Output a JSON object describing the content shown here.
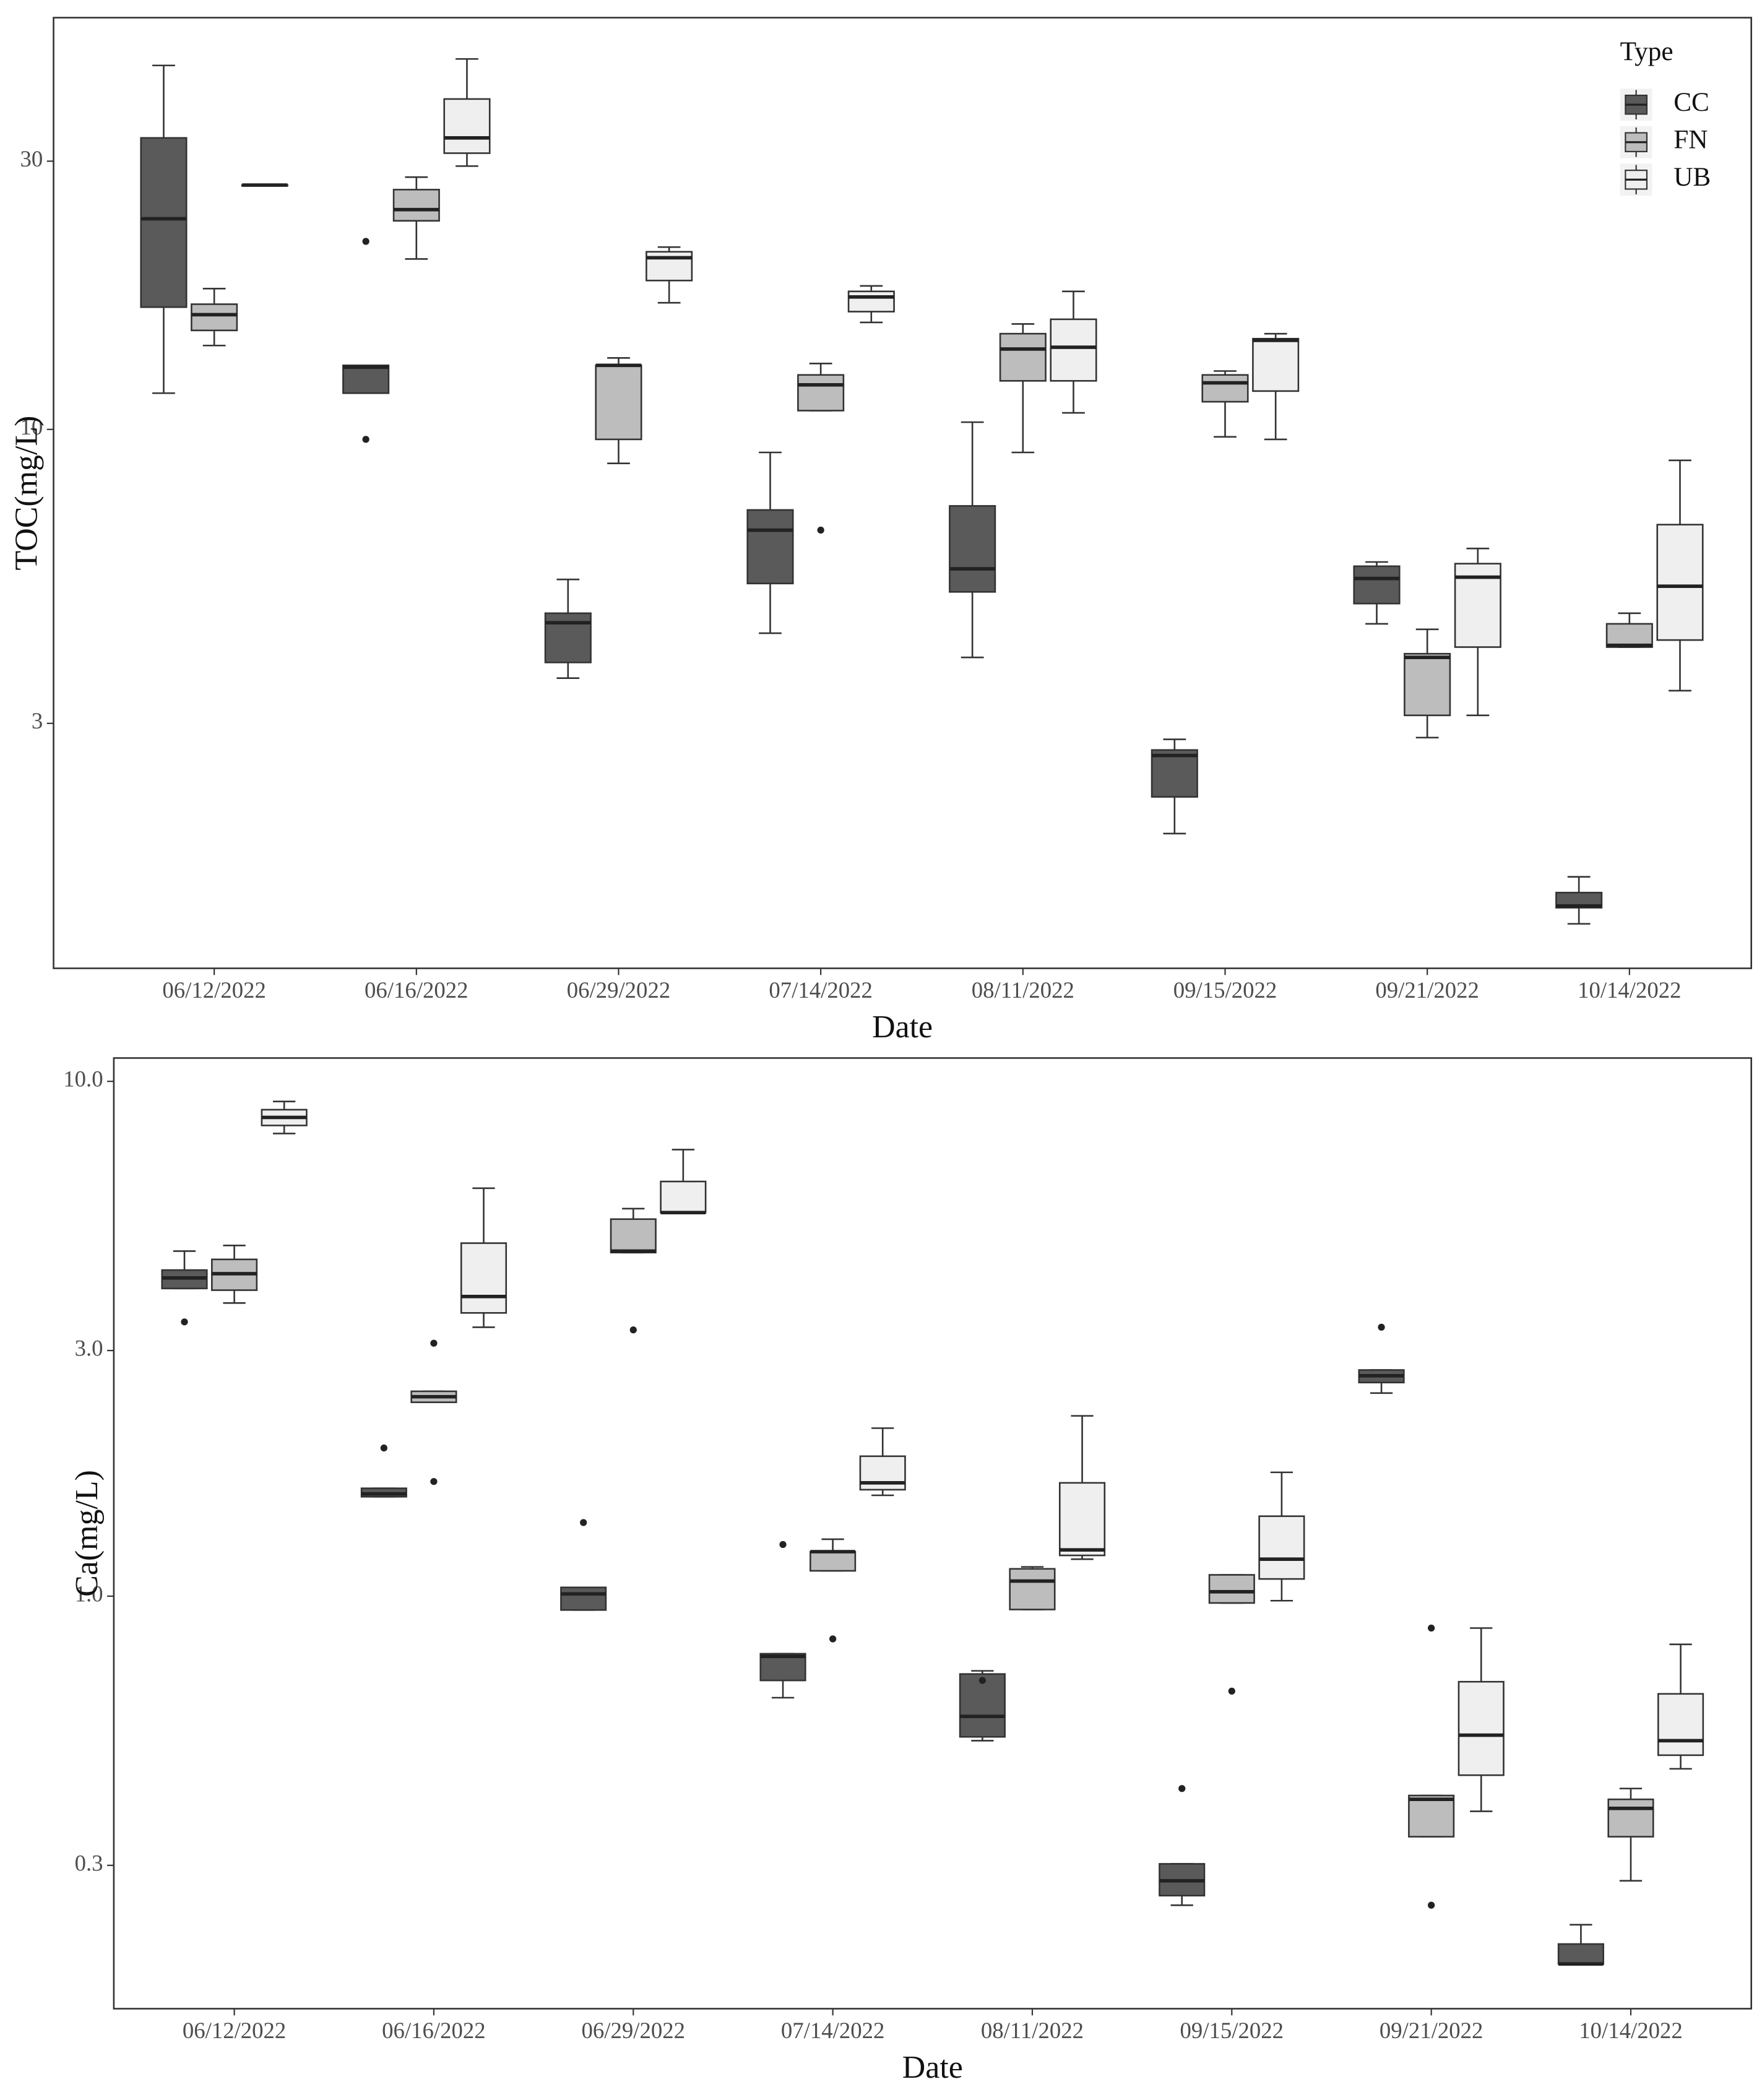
{
  "chart_data": [
    {
      "type": "box",
      "x_label": "Date",
      "y_label": "TOC(mg/L)",
      "log_scale": true,
      "grid": false,
      "legend_title": "Type",
      "legend_position": "top-right",
      "ylim": [
        1.1,
        54
      ],
      "yticks": [
        3,
        10,
        30
      ],
      "categories": [
        "06/12/2022",
        "06/16/2022",
        "06/29/2022",
        "07/14/2022",
        "08/11/2022",
        "09/15/2022",
        "09/21/2022",
        "10/14/2022"
      ],
      "series": [
        {
          "name": "CC",
          "color": "#5a5a5a",
          "values": [
            {
              "min": 11.6,
              "q1": 16.5,
              "median": 23.7,
              "q3": 33,
              "max": 44.4
            },
            {
              "min": 11.6,
              "q1": 11.6,
              "median": 12.9,
              "q3": 13.0,
              "max": 13.0,
              "outliers": [
                21.6,
                9.6
              ]
            },
            {
              "min": 3.61,
              "q1": 3.85,
              "median": 4.53,
              "q3": 4.71,
              "max": 5.41
            },
            {
              "min": 4.34,
              "q1": 5.32,
              "median": 6.62,
              "q3": 7.19,
              "max": 9.1
            },
            {
              "min": 3.93,
              "q1": 5.14,
              "median": 5.65,
              "q3": 7.31,
              "max": 10.3
            },
            {
              "min": 1.91,
              "q1": 2.22,
              "median": 2.63,
              "q3": 2.69,
              "max": 2.81
            },
            {
              "min": 4.51,
              "q1": 4.9,
              "median": 5.43,
              "q3": 5.71,
              "max": 5.81
            },
            {
              "min": 1.32,
              "q1": 1.41,
              "median": 1.42,
              "q3": 1.5,
              "max": 1.6
            }
          ]
        },
        {
          "name": "FN",
          "color": "#bdbdbd",
          "values": [
            {
              "min": 14.1,
              "q1": 15.0,
              "median": 16.0,
              "q3": 16.7,
              "max": 17.8
            },
            {
              "min": 20.1,
              "q1": 23.5,
              "median": 24.6,
              "q3": 26.7,
              "max": 28.1
            },
            {
              "min": 8.7,
              "q1": 9.6,
              "median": 13.0,
              "q3": 13.0,
              "max": 13.4
            },
            {
              "min": 10.8,
              "q1": 10.8,
              "median": 12.0,
              "q3": 12.5,
              "max": 13.1,
              "outliers": [
                6.62
              ]
            },
            {
              "min": 9.1,
              "q1": 12.2,
              "median": 13.9,
              "q3": 14.8,
              "max": 15.4
            },
            {
              "min": 9.7,
              "q1": 11.2,
              "median": 12.1,
              "q3": 12.5,
              "max": 12.7
            },
            {
              "min": 2.83,
              "q1": 3.1,
              "median": 3.93,
              "q3": 3.99,
              "max": 4.41
            },
            {
              "min": 4.1,
              "q1": 4.1,
              "median": 4.13,
              "q3": 4.51,
              "max": 4.71
            }
          ]
        },
        {
          "name": "UB",
          "color": "#efefef",
          "values": [
            {
              "min": 27.2,
              "q1": 27.2,
              "median": 27.2,
              "q3": 27.2,
              "max": 27.2
            },
            {
              "min": 29.4,
              "q1": 31.0,
              "median": 33.0,
              "q3": 38.7,
              "max": 45.6
            },
            {
              "min": 16.8,
              "q1": 18.4,
              "median": 20.2,
              "q3": 20.7,
              "max": 21.1
            },
            {
              "min": 15.5,
              "q1": 16.2,
              "median": 17.2,
              "q3": 17.6,
              "max": 18.0
            },
            {
              "min": 10.7,
              "q1": 12.2,
              "median": 14.0,
              "q3": 15.7,
              "max": 17.6
            },
            {
              "min": 9.6,
              "q1": 11.7,
              "median": 14.4,
              "q3": 14.5,
              "max": 14.8
            },
            {
              "min": 3.1,
              "q1": 4.1,
              "median": 5.46,
              "q3": 5.77,
              "max": 6.14
            },
            {
              "min": 3.43,
              "q1": 4.22,
              "median": 5.26,
              "q3": 6.77,
              "max": 8.81
            }
          ]
        }
      ]
    },
    {
      "type": "box",
      "x_label": "Date",
      "y_label": "Ca(mg/L)",
      "log_scale": true,
      "grid": false,
      "ylim": [
        0.158,
        11.1
      ],
      "yticks": [
        {
          "value": 0.3,
          "label": "0.3"
        },
        {
          "value": 1,
          "label": "1.0"
        },
        {
          "value": 3,
          "label": "3.0"
        },
        {
          "value": 10,
          "label": "10.0"
        }
      ],
      "categories": [
        "06/12/2022",
        "06/16/2022",
        "06/29/2022",
        "07/14/2022",
        "08/11/2022",
        "09/15/2022",
        "09/21/2022",
        "10/14/2022"
      ],
      "series": [
        {
          "name": "CC",
          "color": "#5a5a5a",
          "values": [
            {
              "min": 3.96,
              "q1": 3.96,
              "median": 4.15,
              "q3": 4.3,
              "max": 4.68,
              "outliers": [
                3.41
              ]
            },
            {
              "min": 1.56,
              "q1": 1.56,
              "median": 1.58,
              "q3": 1.62,
              "max": 1.62,
              "outliers": [
                1.94
              ]
            },
            {
              "min": 0.94,
              "q1": 0.94,
              "median": 1.01,
              "q3": 1.04,
              "max": 1.04,
              "outliers": [
                1.39
              ]
            },
            {
              "min": 0.635,
              "q1": 0.686,
              "median": 0.764,
              "q3": 0.773,
              "max": 0.773,
              "outliers": [
                1.26
              ]
            },
            {
              "min": 0.524,
              "q1": 0.533,
              "median": 0.584,
              "q3": 0.706,
              "max": 0.716,
              "outliers": [
                0.686
              ]
            },
            {
              "min": 0.251,
              "q1": 0.262,
              "median": 0.28,
              "q3": 0.302,
              "max": 0.302,
              "outliers": [
                0.423
              ]
            },
            {
              "min": 2.48,
              "q1": 2.6,
              "median": 2.68,
              "q3": 2.75,
              "max": 2.75,
              "outliers": [
                3.33
              ]
            },
            {
              "min": 0.193,
              "q1": 0.193,
              "median": 0.193,
              "q3": 0.211,
              "max": 0.23
            }
          ]
        },
        {
          "name": "FN",
          "color": "#bdbdbd",
          "values": [
            {
              "min": 3.71,
              "q1": 3.93,
              "median": 4.23,
              "q3": 4.51,
              "max": 4.8
            },
            {
              "min": 2.38,
              "q1": 2.38,
              "median": 2.44,
              "q3": 2.5,
              "max": 2.5,
              "outliers": [
                3.1,
                1.67
              ]
            },
            {
              "min": 4.65,
              "q1": 4.65,
              "median": 4.68,
              "q3": 5.4,
              "max": 5.66,
              "outliers": [
                3.29
              ]
            },
            {
              "min": 1.12,
              "q1": 1.12,
              "median": 1.22,
              "q3": 1.22,
              "max": 1.29,
              "outliers": [
                0.826
              ]
            },
            {
              "min": 0.942,
              "q1": 0.942,
              "median": 1.07,
              "q3": 1.13,
              "max": 1.14
            },
            {
              "min": 0.97,
              "q1": 0.97,
              "median": 1.02,
              "q3": 1.1,
              "max": 1.1,
              "outliers": [
                0.654
              ]
            },
            {
              "min": 0.341,
              "q1": 0.341,
              "median": 0.403,
              "q3": 0.41,
              "max": 0.41,
              "outliers": [
                0.867,
                0.251
              ]
            },
            {
              "min": 0.28,
              "q1": 0.341,
              "median": 0.387,
              "q3": 0.403,
              "max": 0.423
            }
          ]
        },
        {
          "name": "UB",
          "color": "#efefef",
          "values": [
            {
              "min": 7.92,
              "q1": 8.21,
              "median": 8.51,
              "q3": 8.81,
              "max": 9.14
            },
            {
              "min": 3.33,
              "q1": 3.55,
              "median": 3.82,
              "q3": 4.85,
              "max": 6.2
            },
            {
              "min": 5.56,
              "q1": 5.56,
              "median": 5.56,
              "q3": 6.39,
              "max": 7.37
            },
            {
              "min": 1.57,
              "q1": 1.61,
              "median": 1.66,
              "q3": 1.87,
              "max": 2.12
            },
            {
              "min": 1.18,
              "q1": 1.2,
              "median": 1.23,
              "q3": 1.66,
              "max": 2.24
            },
            {
              "min": 0.98,
              "q1": 1.08,
              "median": 1.18,
              "q3": 1.43,
              "max": 1.74
            },
            {
              "min": 0.382,
              "q1": 0.449,
              "median": 0.537,
              "q3": 0.682,
              "max": 0.867
            },
            {
              "min": 0.462,
              "q1": 0.491,
              "median": 0.524,
              "q3": 0.646,
              "max": 0.806
            }
          ]
        }
      ]
    }
  ]
}
